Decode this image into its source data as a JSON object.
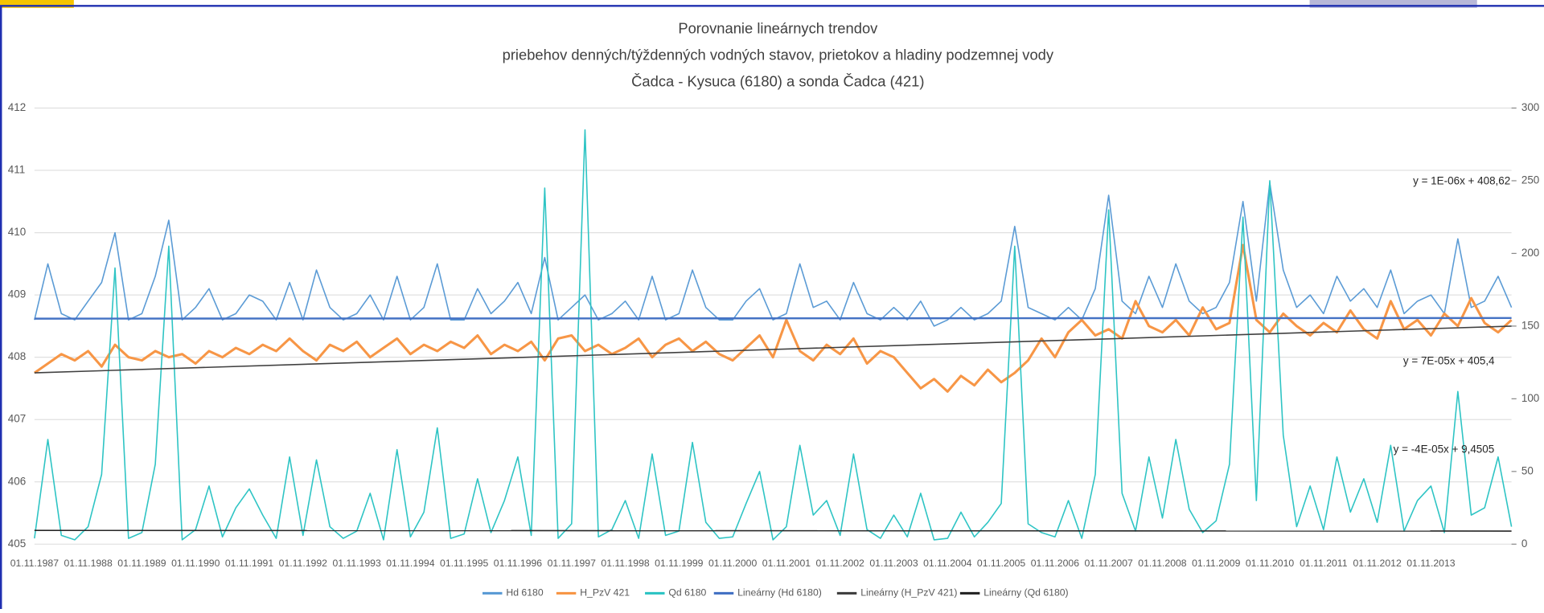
{
  "chart_data": {
    "type": "line",
    "title": "Porovnanie  lineárnych trendov",
    "subtitle": "priebehov denných/týždenných  vodných stavov, prietokov a hladiny podzemnej  vody",
    "subtitle2": "Čadca - Kysuca (6180) a sonda Čadca (421)",
    "categories": [
      "01.11.1987",
      null,
      null,
      null,
      "01.11.1988",
      null,
      null,
      null,
      "01.11.1989",
      null,
      null,
      null,
      "01.11.1990",
      null,
      null,
      null,
      "01.11.1991",
      null,
      null,
      null,
      "01.11.1992",
      null,
      null,
      null,
      "01.11.1993",
      null,
      null,
      null,
      "01.11.1994",
      null,
      null,
      null,
      "01.11.1995",
      null,
      null,
      null,
      "01.11.1996",
      null,
      null,
      null,
      "01.11.1997",
      null,
      null,
      null,
      "01.11.1998",
      null,
      null,
      null,
      "01.11.1999",
      null,
      null,
      null,
      "01.11.2000",
      null,
      null,
      null,
      "01.11.2001",
      null,
      null,
      null,
      "01.11.2002",
      null,
      null,
      null,
      "01.11.2003",
      null,
      null,
      null,
      "01.11.2004",
      null,
      null,
      null,
      "01.11.2005",
      null,
      null,
      null,
      "01.11.2006",
      null,
      null,
      null,
      "01.11.2007",
      null,
      null,
      null,
      "01.11.2008",
      null,
      null,
      null,
      "01.11.2009",
      null,
      null,
      null,
      "01.11.2010",
      null,
      null,
      null,
      "01.11.2011",
      null,
      null,
      null,
      "01.11.2012",
      null,
      null,
      null,
      "01.11.2013",
      null,
      null,
      null,
      null,
      null,
      null
    ],
    "series": [
      {
        "name": "Hd 6180",
        "color": "#5b9bd5",
        "values": [
          408.6,
          409.5,
          408.7,
          408.6,
          408.9,
          409.2,
          410.0,
          408.6,
          408.7,
          409.3,
          410.2,
          408.6,
          408.8,
          409.1,
          408.6,
          408.7,
          409.0,
          408.9,
          408.6,
          409.2,
          408.6,
          409.4,
          408.8,
          408.6,
          408.7,
          409.0,
          408.6,
          409.3,
          408.6,
          408.8,
          409.5,
          408.6,
          408.6,
          409.1,
          408.7,
          408.9,
          409.2,
          408.7,
          409.6,
          408.6,
          408.8,
          409.0,
          408.6,
          408.7,
          408.9,
          408.6,
          409.3,
          408.6,
          408.7,
          409.4,
          408.8,
          408.6,
          408.6,
          408.9,
          409.1,
          408.6,
          408.7,
          409.5,
          408.8,
          408.9,
          408.6,
          409.2,
          408.7,
          408.6,
          408.8,
          408.6,
          408.9,
          408.5,
          408.6,
          408.8,
          408.6,
          408.7,
          408.9,
          410.1,
          408.8,
          408.7,
          408.6,
          408.8,
          408.6,
          409.1,
          410.6,
          408.9,
          408.7,
          409.3,
          408.8,
          409.5,
          408.9,
          408.7,
          408.8,
          409.2,
          410.5,
          408.9,
          410.8,
          409.4,
          408.8,
          409.0,
          408.7,
          409.3,
          408.9,
          409.1,
          408.8,
          409.4,
          408.7,
          408.9,
          409.0,
          408.7,
          409.9,
          408.8,
          408.9,
          409.3,
          408.8
        ]
      },
      {
        "name": "H_PzV 421",
        "color": "#f79646",
        "values": [
          407.75,
          407.9,
          408.05,
          407.95,
          408.1,
          407.85,
          408.2,
          408.0,
          407.95,
          408.1,
          408.0,
          408.05,
          407.9,
          408.1,
          408.0,
          408.15,
          408.05,
          408.2,
          408.1,
          408.3,
          408.1,
          407.95,
          408.2,
          408.1,
          408.25,
          408.0,
          408.15,
          408.3,
          408.05,
          408.2,
          408.1,
          408.25,
          408.15,
          408.35,
          408.05,
          408.2,
          408.1,
          408.25,
          407.95,
          408.3,
          408.35,
          408.1,
          408.2,
          408.05,
          408.15,
          408.3,
          408.0,
          408.2,
          408.3,
          408.1,
          408.25,
          408.05,
          407.95,
          408.15,
          408.35,
          408.0,
          408.6,
          408.1,
          407.95,
          408.2,
          408.05,
          408.3,
          407.9,
          408.1,
          408.0,
          407.75,
          407.5,
          407.65,
          407.45,
          407.7,
          407.55,
          407.8,
          407.6,
          407.75,
          407.95,
          408.3,
          408.0,
          408.4,
          408.6,
          408.35,
          408.45,
          408.3,
          408.9,
          408.5,
          408.4,
          408.6,
          408.35,
          408.8,
          408.45,
          408.55,
          409.8,
          408.6,
          408.4,
          408.7,
          408.5,
          408.35,
          408.55,
          408.4,
          408.75,
          408.45,
          408.3,
          408.9,
          408.45,
          408.6,
          408.35,
          408.7,
          408.5,
          408.95,
          408.55,
          408.4,
          408.6
        ]
      },
      {
        "name": "Qd 6180",
        "color": "#2ec4c4",
        "axis": "y2",
        "values": [
          4,
          72,
          6,
          3,
          12,
          48,
          190,
          4,
          8,
          55,
          205,
          3,
          10,
          40,
          5,
          25,
          38,
          20,
          4,
          60,
          6,
          58,
          12,
          4,
          9,
          35,
          3,
          65,
          5,
          22,
          80,
          4,
          7,
          45,
          8,
          30,
          60,
          6,
          245,
          4,
          14,
          285,
          5,
          10,
          30,
          4,
          62,
          6,
          9,
          70,
          15,
          4,
          5,
          28,
          50,
          3,
          12,
          68,
          20,
          30,
          6,
          62,
          10,
          4,
          20,
          5,
          35,
          3,
          4,
          22,
          5,
          15,
          28,
          205,
          14,
          8,
          5,
          30,
          4,
          48,
          230,
          35,
          9,
          60,
          18,
          72,
          24,
          8,
          16,
          55,
          225,
          30,
          250,
          75,
          12,
          40,
          10,
          60,
          22,
          45,
          15,
          68,
          9,
          30,
          40,
          8,
          105,
          20,
          25,
          60,
          12
        ]
      }
    ],
    "trendlines": [
      {
        "name": "Lineárny (Hd 6180)",
        "color": "#4472c4",
        "start": 408.62,
        "end": 408.63,
        "label": "y = 1E-06x + 408,62"
      },
      {
        "name": "Lineárny (H_PzV 421)",
        "color": "#404040",
        "start": 407.75,
        "end": 408.5,
        "label": "y = 7E-05x + 405,4"
      },
      {
        "name": "Lineárny (Qd 6180)",
        "color": "#262626",
        "axis": "y2",
        "start": 9.45,
        "end": 9.0,
        "label": "y = -4E-05x + 9,4505"
      }
    ],
    "ylim": [
      405,
      412
    ],
    "yticks": [
      405,
      406,
      407,
      408,
      409,
      410,
      411,
      412
    ],
    "y2lim": [
      0,
      300
    ],
    "y2ticks": [
      0,
      50,
      100,
      150,
      200,
      250,
      300
    ],
    "grid": true
  }
}
